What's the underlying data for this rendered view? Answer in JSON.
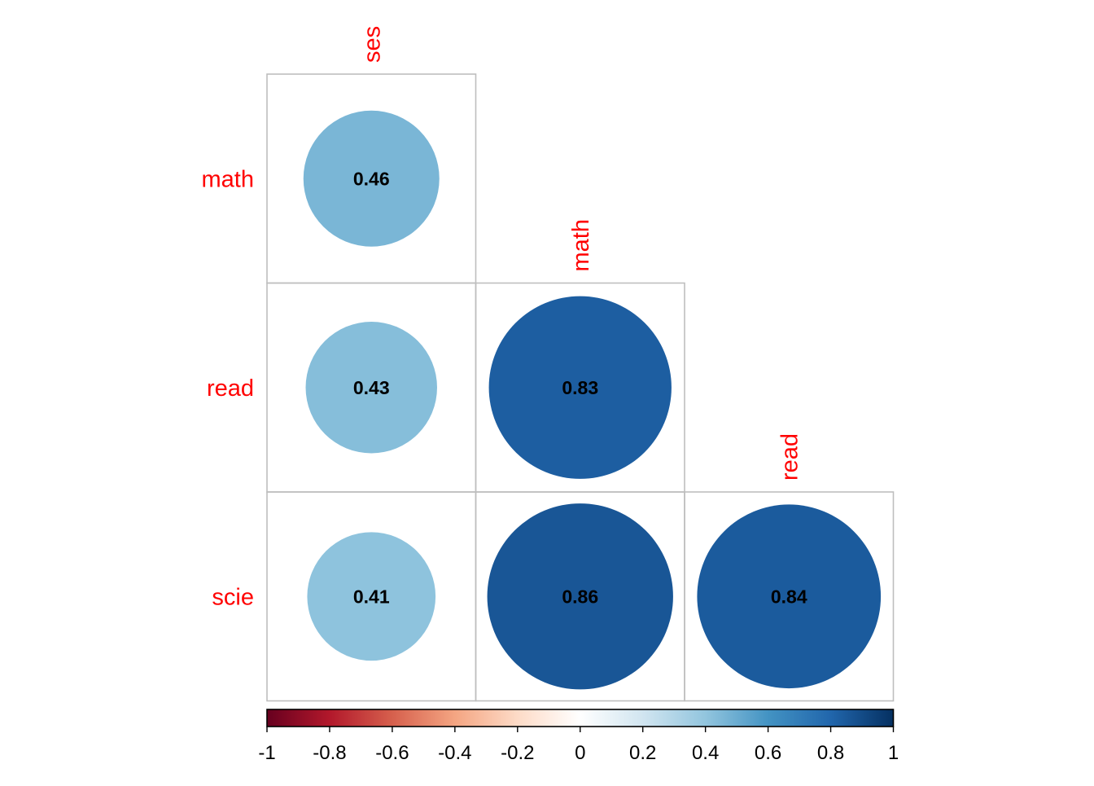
{
  "chart_data": {
    "type": "heatmap",
    "subtype": "correlation-circles-lower-triangle",
    "row_labels": [
      "math",
      "read",
      "scie"
    ],
    "col_labels": [
      "ses",
      "math",
      "read"
    ],
    "cells": [
      {
        "row": "math",
        "col": "ses",
        "value": 0.46,
        "label": "0.46"
      },
      {
        "row": "read",
        "col": "ses",
        "value": 0.43,
        "label": "0.43"
      },
      {
        "row": "read",
        "col": "math",
        "value": 0.83,
        "label": "0.83"
      },
      {
        "row": "scie",
        "col": "ses",
        "value": 0.41,
        "label": "0.41"
      },
      {
        "row": "scie",
        "col": "math",
        "value": 0.86,
        "label": "0.86"
      },
      {
        "row": "scie",
        "col": "read",
        "value": 0.84,
        "label": "0.84"
      }
    ],
    "colorbar": {
      "range": [
        -1,
        1
      ],
      "tick_labels": [
        "-1",
        "-0.8",
        "-0.6",
        "-0.4",
        "-0.2",
        "0",
        "0.2",
        "0.4",
        "0.6",
        "0.8",
        "1"
      ],
      "placement": "bottom",
      "palette": [
        "#67001F",
        "#B2182B",
        "#D6604D",
        "#F4A582",
        "#FDDBC7",
        "#FFFFFF",
        "#D1E5F0",
        "#92C5DE",
        "#4393C3",
        "#2166AC",
        "#053061"
      ]
    },
    "label_color": "#FF0000",
    "grid_color": "#BEBEBE"
  }
}
